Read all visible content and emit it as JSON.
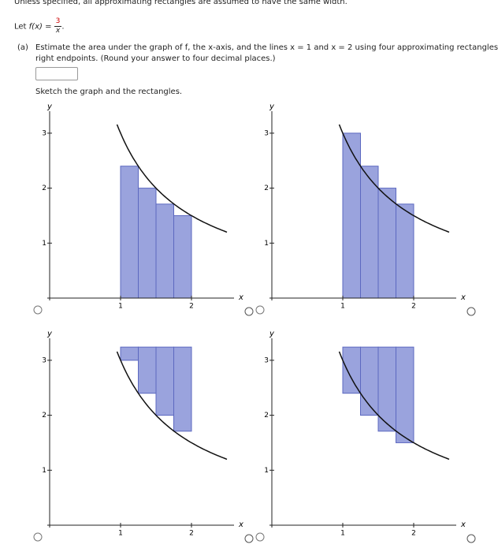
{
  "header": {
    "note": "Unless specified, all approximating rectangles are assumed to have the same width."
  },
  "function": {
    "prefix": "Let ",
    "name": "f(x)",
    "equals": " = ",
    "numerator": 3,
    "denominator": "x",
    "suffix": "."
  },
  "part_a": {
    "label": "(a)",
    "line1": "Estimate the area under the graph of f, the x-axis, and the lines x = 1 and x = 2 using four approximating rectangles and",
    "line2": "right endpoints. (Round your answer to four decimal places.)"
  },
  "sketch_prompt": "Sketch the graph and the rectangles.",
  "axes": {
    "xlabel": "x",
    "ylabel": "y",
    "xlim": [
      0,
      2.6
    ],
    "ylim": [
      0,
      3.4
    ],
    "xticks": [
      1,
      2
    ],
    "yticks": [
      1,
      2,
      3
    ],
    "curve_domain": [
      0.95,
      2.5
    ],
    "rect_edges": [
      1,
      1.25,
      1.5,
      1.75,
      2
    ],
    "hang_top": 3.24,
    "rect_color": "#9aa3dd",
    "rect_stroke": "#5c68c0"
  },
  "graphs": [
    {
      "heights": [
        2.4,
        2,
        1.71,
        1.5
      ],
      "hanging": false
    },
    {
      "heights": [
        3,
        2.4,
        2,
        1.71
      ],
      "hanging": false
    },
    {
      "heights": [
        3,
        2.4,
        2,
        1.71
      ],
      "hanging": true
    },
    {
      "heights": [
        2.4,
        2,
        1.71,
        1.5
      ],
      "hanging": true
    }
  ]
}
